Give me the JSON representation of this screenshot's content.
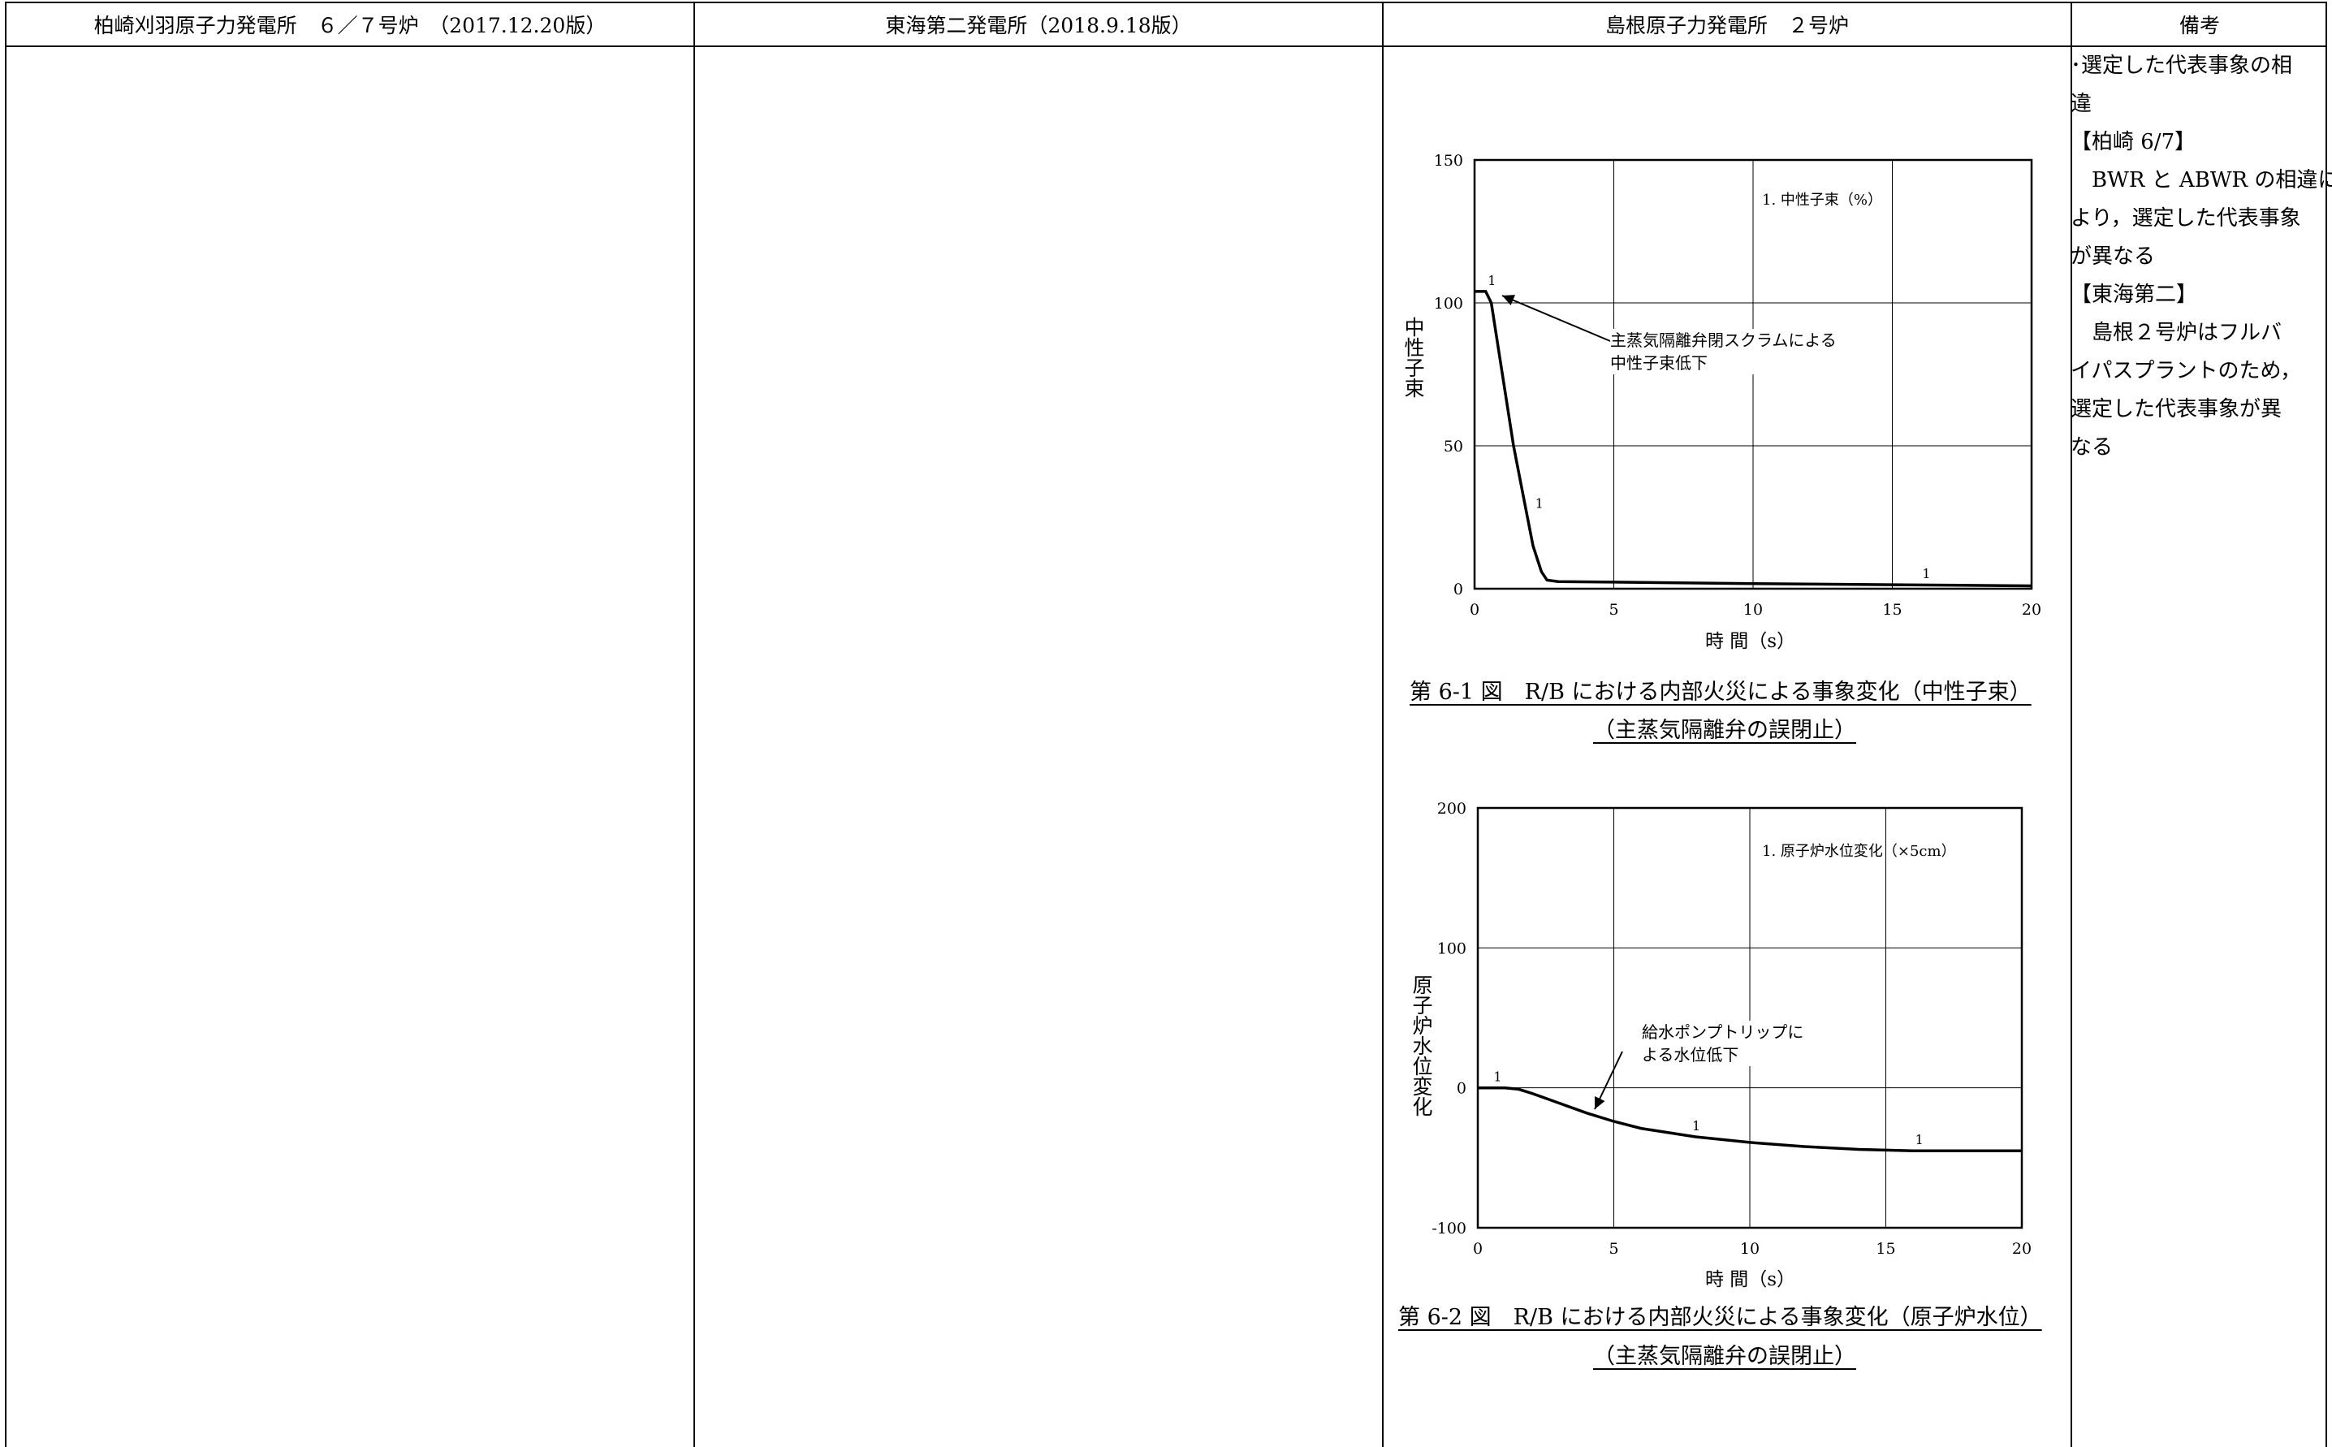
{
  "header": {
    "col1": "柏崎刈羽原子力発電所　６／７号炉　（2017.12.20版）",
    "col2": "東海第二発電所（2018.9.18版）",
    "col3": "島根原子力発電所　２号炉",
    "col4": "備考"
  },
  "remarks": {
    "lines": [
      "･選定した代表事象の相",
      "違",
      "【柏崎 6/7】",
      "　BWR と ABWR の相違に",
      "より，選定した代表事象",
      "が異なる",
      "【東海第二】",
      "　島根２号炉はフルバ",
      "イパスプラントのため，",
      "選定した代表事象が異",
      "なる"
    ]
  },
  "figure1": {
    "ylabel": "中性子束",
    "xlabel": "時 間（s）",
    "legend": "1. 中性子束（%）",
    "annotation_line1": "主蒸気隔離弁閉スクラムによる",
    "annotation_line2": "中性子束低下",
    "caption_line1": "第 6-1 図　R/B における内部火災による事象変化（中性子束）",
    "caption_line2": "（主蒸気隔離弁の誤閉止）",
    "series_marker": "1",
    "chart_data": {
      "type": "line",
      "xlim": [
        0,
        20
      ],
      "ylim": [
        0,
        150
      ],
      "xticks": [
        0,
        5,
        10,
        15,
        20
      ],
      "yticks": [
        0,
        50,
        100,
        150
      ],
      "series": [
        {
          "name": "中性子束（%）",
          "x": [
            0,
            0.4,
            0.6,
            1.0,
            1.4,
            1.8,
            2.1,
            2.4,
            2.6,
            3.0,
            5,
            10,
            15,
            20
          ],
          "y": [
            104,
            104,
            100,
            75,
            50,
            30,
            15,
            6,
            3,
            2.5,
            2.3,
            1.8,
            1.4,
            1.0
          ]
        }
      ]
    }
  },
  "figure2": {
    "ylabel": "原子炉水位変化",
    "xlabel": "時 間（s）",
    "legend": "1. 原子炉水位変化（×5cm）",
    "annotation_line1": "給水ポンプトリップに",
    "annotation_line2": "よる水位低下",
    "caption_line1": "第 6-2 図　R/B における内部火災による事象変化（原子炉水位）",
    "caption_line2": "（主蒸気隔離弁の誤閉止）",
    "series_marker": "1",
    "chart_data": {
      "type": "line",
      "xlim": [
        0,
        20
      ],
      "ylim": [
        -100,
        200
      ],
      "xticks": [
        0,
        5,
        10,
        15,
        20
      ],
      "yticks": [
        -100,
        0,
        100,
        200
      ],
      "series": [
        {
          "name": "原子炉水位変化（×5cm）",
          "x": [
            0,
            1,
            1.5,
            2,
            3,
            4,
            5,
            6,
            8,
            10,
            12,
            14,
            16,
            18,
            20
          ],
          "y": [
            0,
            0,
            -1,
            -4,
            -11,
            -18,
            -24,
            -29,
            -35,
            -39,
            -42,
            -44,
            -45,
            -45,
            -45
          ]
        }
      ]
    }
  }
}
